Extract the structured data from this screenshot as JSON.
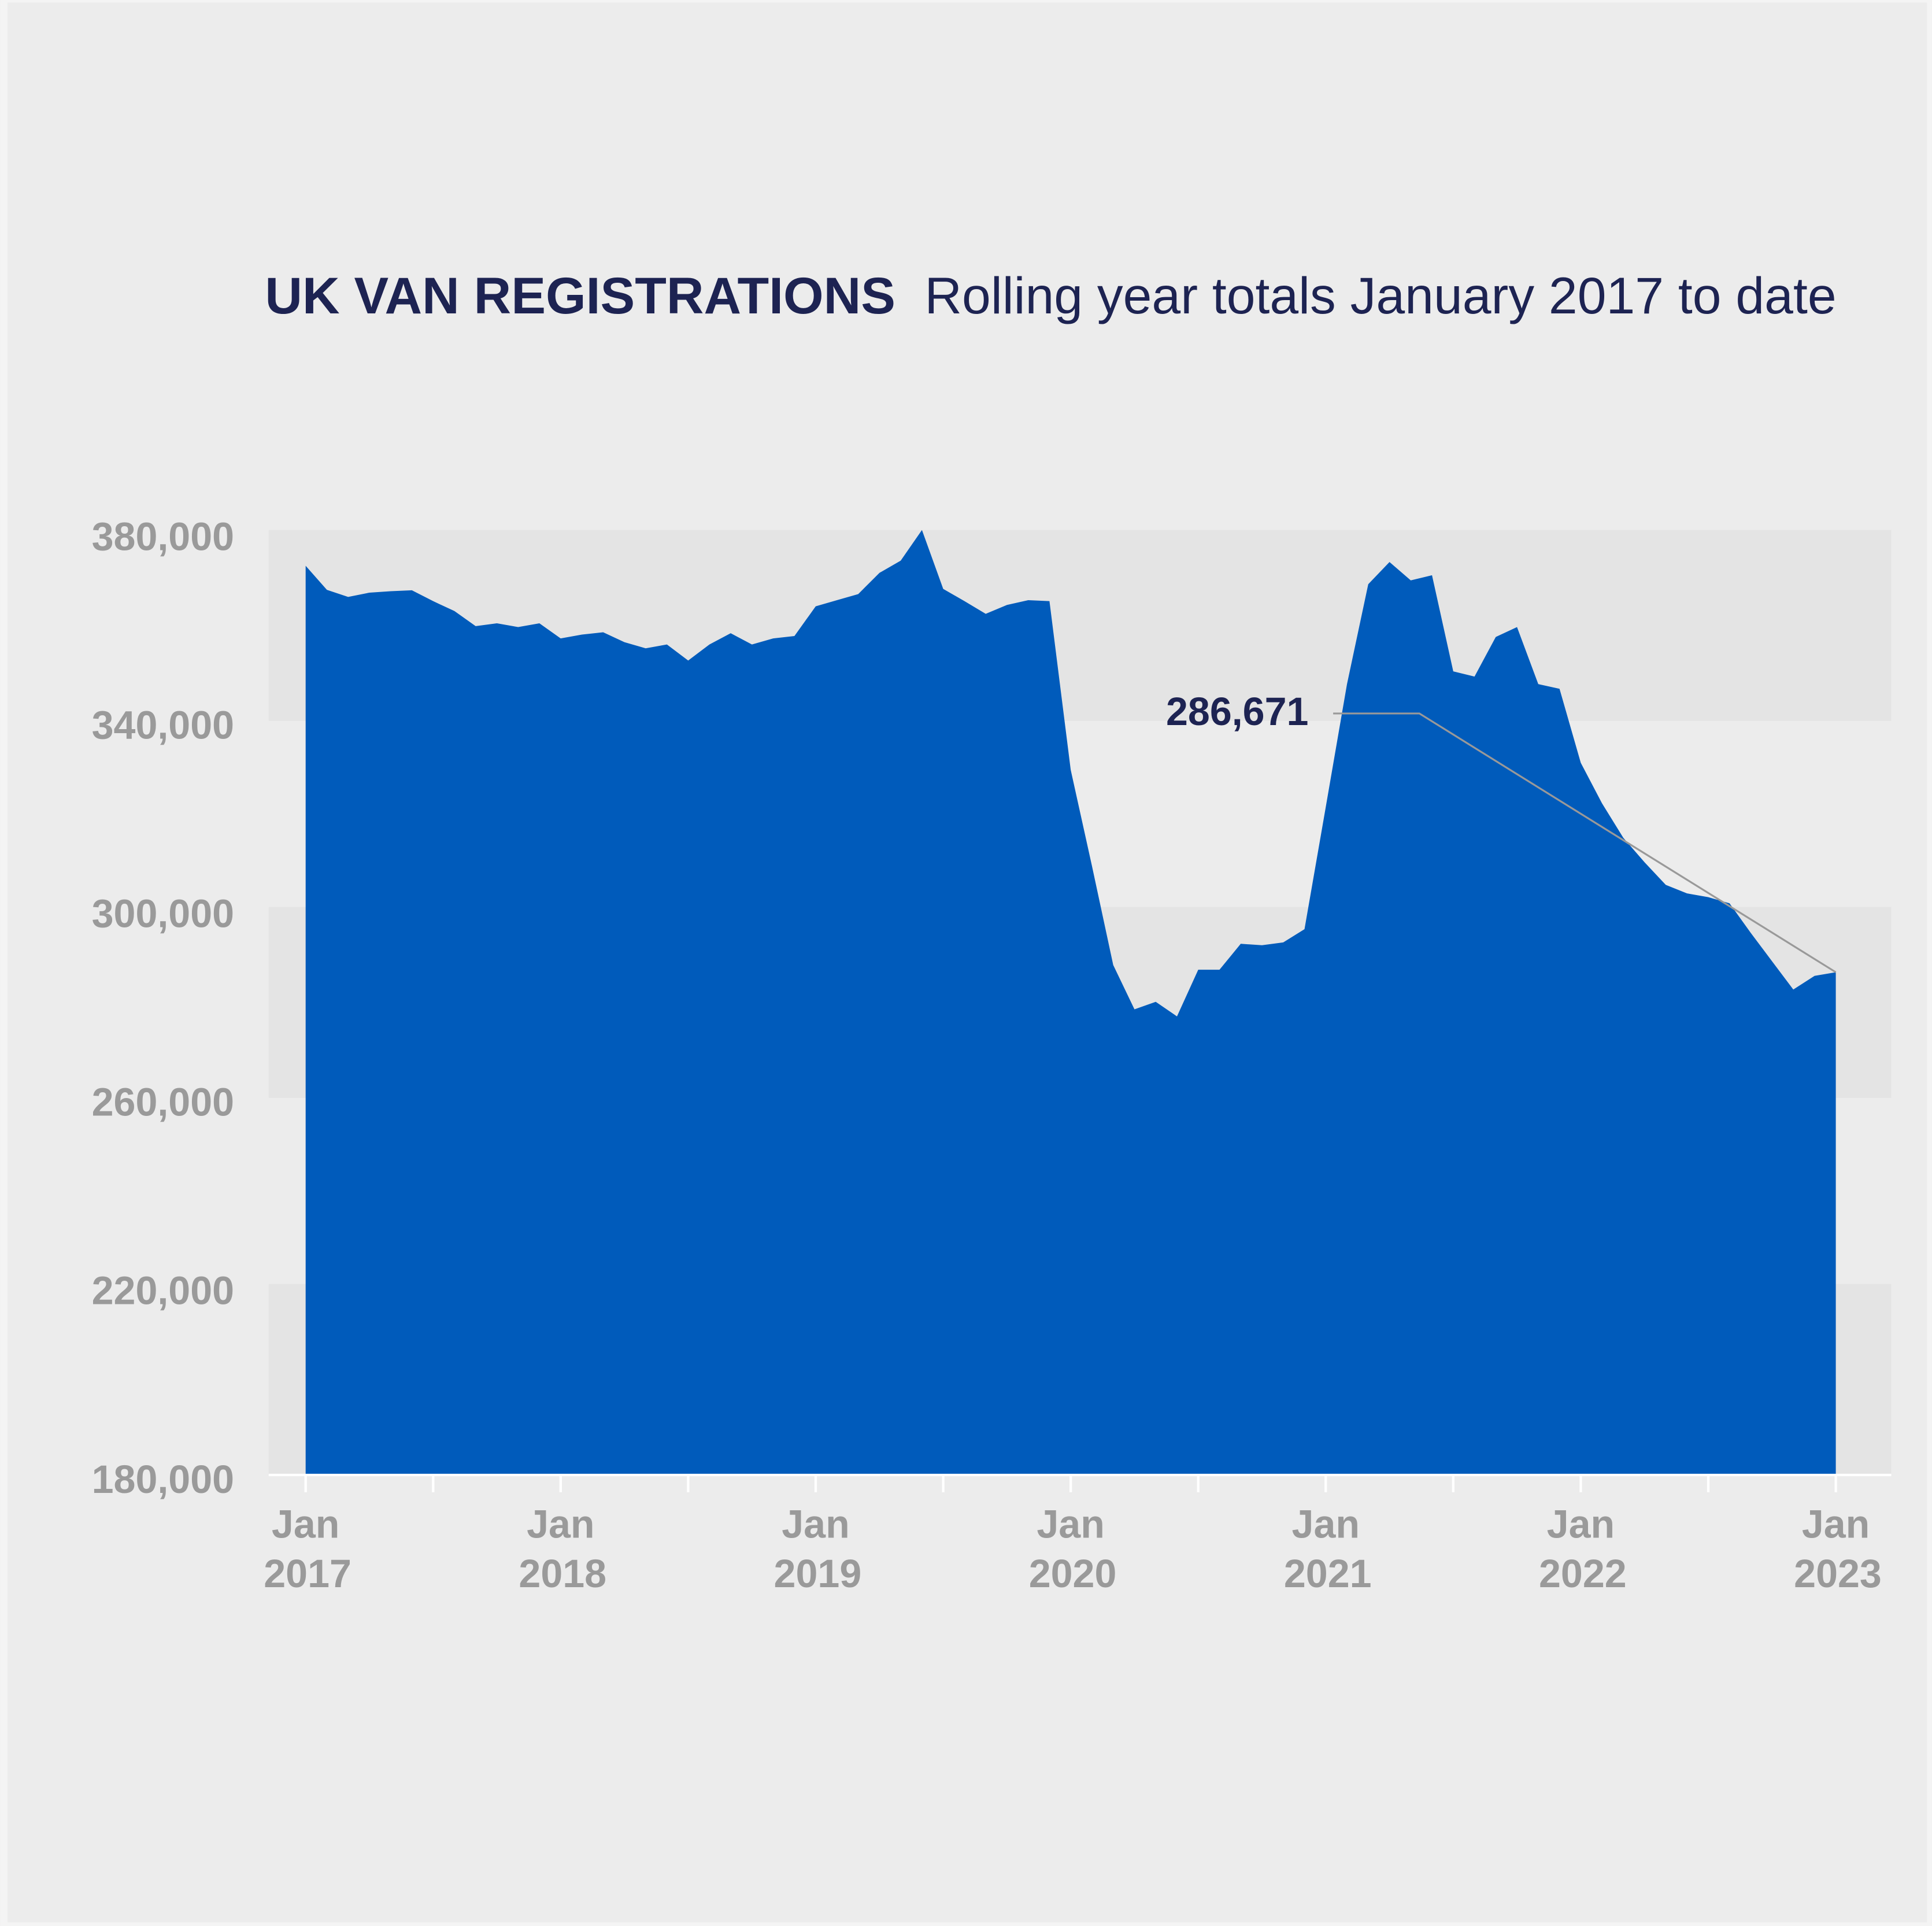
{
  "chart_data": {
    "type": "area",
    "title": "UK VAN REGISTRATIONS",
    "subtitle": "Rolling year totals January 2017 to date",
    "categories": [
      "Jan 2017",
      null,
      null,
      null,
      null,
      null,
      null,
      null,
      null,
      null,
      null,
      null,
      "Jan 2018",
      null,
      null,
      null,
      null,
      null,
      null,
      null,
      null,
      null,
      null,
      null,
      "Jan 2019",
      null,
      null,
      null,
      null,
      null,
      null,
      null,
      null,
      null,
      null,
      null,
      "Jan 2020",
      null,
      null,
      null,
      null,
      null,
      null,
      null,
      null,
      null,
      null,
      null,
      "Jan 2021",
      null,
      null,
      null,
      null,
      null,
      null,
      null,
      null,
      null,
      null,
      null,
      "Jan 2022",
      null,
      null,
      null,
      null,
      null,
      null,
      null,
      null,
      null,
      null,
      null,
      "Jan 2023"
    ],
    "values": [
      372900,
      367800,
      366300,
      367200,
      367500,
      367700,
      365400,
      363300,
      360100,
      360700,
      359900,
      360700,
      357500,
      358300,
      358800,
      356700,
      355400,
      356200,
      352800,
      356200,
      358600,
      356200,
      357500,
      358000,
      364300,
      365600,
      366900,
      371400,
      374000,
      380500,
      368000,
      365400,
      362700,
      364600,
      365600,
      365400,
      329600,
      309200,
      288200,
      278800,
      280400,
      277300,
      287200,
      287200,
      292700,
      292400,
      293000,
      295800,
      321700,
      347800,
      369000,
      373700,
      369800,
      370900,
      350500,
      349400,
      357800,
      359900,
      347800,
      346800,
      331100,
      322500,
      315200,
      310000,
      305200,
      303400,
      302600,
      301300,
      295000,
      289000,
      283000,
      285900,
      286671
    ],
    "value_labels": [
      null,
      null,
      null,
      null,
      null,
      null,
      null,
      null,
      null,
      null,
      null,
      null,
      null,
      null,
      null,
      null,
      null,
      null,
      null,
      null,
      null,
      null,
      null,
      null,
      null,
      null,
      null,
      null,
      null,
      null,
      null,
      null,
      null,
      null,
      null,
      null,
      null,
      null,
      null,
      null,
      null,
      null,
      null,
      null,
      null,
      null,
      null,
      null,
      null,
      null,
      null,
      null,
      null,
      null,
      null,
      null,
      null,
      null,
      null,
      null,
      null,
      null,
      null,
      null,
      null,
      null,
      null,
      null,
      null,
      null,
      null,
      null,
      "286,671"
    ],
    "color": "#005bbb",
    "ylim": [
      180000,
      380000
    ],
    "yticks": [
      {
        "value": 180000,
        "label": "180,000"
      },
      {
        "value": 220000,
        "label": "220,000"
      },
      {
        "value": 260000,
        "label": "260,000"
      },
      {
        "value": 300000,
        "label": "300,000"
      },
      {
        "value": 340000,
        "label": "340,000"
      },
      {
        "value": 380000,
        "label": "380,000"
      }
    ],
    "grid": true
  }
}
